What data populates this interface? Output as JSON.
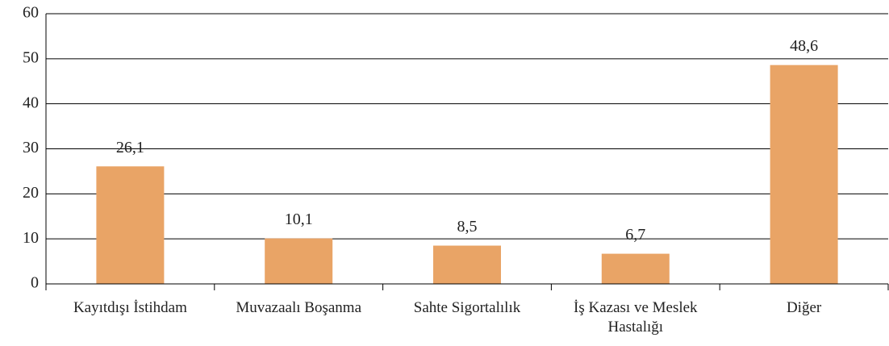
{
  "chart_data": {
    "type": "bar",
    "categories": [
      "Kayıtdışı İstihdam",
      "Muvazaalı Boşanma",
      "Sahte Sigortalılık",
      "İş Kazası ve Meslek Hastalığı",
      "Diğer"
    ],
    "values": [
      26.1,
      10.1,
      8.5,
      6.7,
      48.6
    ],
    "value_labels": [
      "26,1",
      "10,1",
      "8,5",
      "6,7",
      "48,6"
    ],
    "color": "#e9a466",
    "ylim": [
      0,
      60
    ],
    "yticks": [
      0,
      10,
      20,
      30,
      40,
      50,
      60
    ],
    "grid": true
  }
}
